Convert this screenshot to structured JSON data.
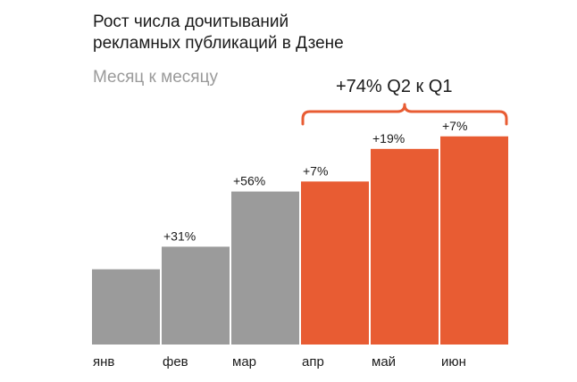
{
  "chart_data": {
    "type": "bar",
    "title": [
      "Рост числа дочитываний",
      "рекламных публикаций в Дзене"
    ],
    "subtitle": "Месяц к месяцу",
    "categories": [
      "янв",
      "фев",
      "мар",
      "апр",
      "май",
      "июн"
    ],
    "values": [
      30,
      39,
      61,
      65,
      78,
      83
    ],
    "growth_labels": [
      "",
      "+31%",
      "+56%",
      "+7%",
      "+19%",
      "+7%"
    ],
    "bar_colors": [
      "#9b9b9b",
      "#9b9b9b",
      "#9b9b9b",
      "#e85c33",
      "#e85c33",
      "#e85c33"
    ],
    "bracket": {
      "label": "+74% Q2 к Q1",
      "from_category": "апр",
      "to_category": "июн",
      "color": "#e85c33"
    },
    "ylim": [
      0,
      100
    ],
    "grid": false,
    "xlabel": "",
    "ylabel": ""
  }
}
